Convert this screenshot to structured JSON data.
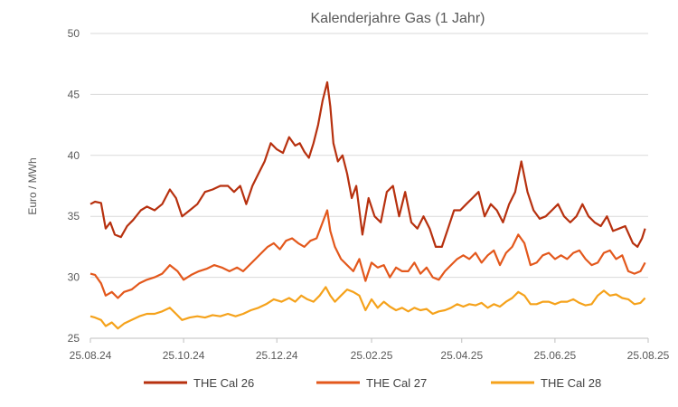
{
  "chart_data": {
    "type": "line",
    "title": "Kalenderjahre Gas (1 Jahr)",
    "xlabel": "",
    "ylabel": "Euro / MWh",
    "ylim": [
      25,
      50
    ],
    "yticks": [
      25,
      30,
      35,
      40,
      45,
      50
    ],
    "xlim": [
      "2024-08-25",
      "2025-08-25"
    ],
    "xticks": [
      "25.08.24",
      "25.10.24",
      "25.12.24",
      "25.02.25",
      "25.04.25",
      "25.06.25",
      "25.08.25"
    ],
    "xtick_dates": [
      "2024-08-25",
      "2024-10-25",
      "2024-12-25",
      "2025-02-25",
      "2025-04-25",
      "2025-06-25",
      "2025-08-25"
    ],
    "grid": "horizontal",
    "legend_position": "bottom",
    "series": [
      {
        "name": "THE Cal 26",
        "color": "#b7310f",
        "points": [
          [
            "2024-08-25",
            36.0
          ],
          [
            "2024-08-28",
            36.2
          ],
          [
            "2024-09-01",
            36.1
          ],
          [
            "2024-09-04",
            34.0
          ],
          [
            "2024-09-07",
            34.5
          ],
          [
            "2024-09-10",
            33.5
          ],
          [
            "2024-09-14",
            33.3
          ],
          [
            "2024-09-18",
            34.2
          ],
          [
            "2024-09-22",
            34.7
          ],
          [
            "2024-09-27",
            35.5
          ],
          [
            "2024-10-01",
            35.8
          ],
          [
            "2024-10-06",
            35.5
          ],
          [
            "2024-10-11",
            36.0
          ],
          [
            "2024-10-16",
            37.2
          ],
          [
            "2024-10-20",
            36.5
          ],
          [
            "2024-10-24",
            35.0
          ],
          [
            "2024-10-29",
            35.5
          ],
          [
            "2024-11-03",
            36.0
          ],
          [
            "2024-11-08",
            37.0
          ],
          [
            "2024-11-13",
            37.2
          ],
          [
            "2024-11-18",
            37.5
          ],
          [
            "2024-11-23",
            37.5
          ],
          [
            "2024-11-27",
            37.0
          ],
          [
            "2024-12-01",
            37.5
          ],
          [
            "2024-12-05",
            36.0
          ],
          [
            "2024-12-09",
            37.5
          ],
          [
            "2024-12-13",
            38.5
          ],
          [
            "2024-12-17",
            39.5
          ],
          [
            "2024-12-21",
            41.0
          ],
          [
            "2024-12-25",
            40.5
          ],
          [
            "2024-12-29",
            40.2
          ],
          [
            "2025-01-02",
            41.5
          ],
          [
            "2025-01-06",
            40.8
          ],
          [
            "2025-01-09",
            41.0
          ],
          [
            "2025-01-12",
            40.3
          ],
          [
            "2025-01-15",
            39.8
          ],
          [
            "2025-01-18",
            41.0
          ],
          [
            "2025-01-21",
            42.5
          ],
          [
            "2025-01-24",
            44.5
          ],
          [
            "2025-01-27",
            46.0
          ],
          [
            "2025-01-29",
            44.0
          ],
          [
            "2025-01-31",
            41.0
          ],
          [
            "2025-02-03",
            39.5
          ],
          [
            "2025-02-06",
            40.0
          ],
          [
            "2025-02-09",
            38.5
          ],
          [
            "2025-02-12",
            36.5
          ],
          [
            "2025-02-15",
            37.5
          ],
          [
            "2025-02-19",
            33.5
          ],
          [
            "2025-02-23",
            36.5
          ],
          [
            "2025-02-27",
            35.0
          ],
          [
            "2025-03-03",
            34.5
          ],
          [
            "2025-03-07",
            37.0
          ],
          [
            "2025-03-11",
            37.5
          ],
          [
            "2025-03-15",
            35.0
          ],
          [
            "2025-03-19",
            37.0
          ],
          [
            "2025-03-23",
            34.5
          ],
          [
            "2025-03-27",
            34.0
          ],
          [
            "2025-03-31",
            35.0
          ],
          [
            "2025-04-04",
            34.0
          ],
          [
            "2025-04-08",
            32.5
          ],
          [
            "2025-04-12",
            32.5
          ],
          [
            "2025-04-16",
            34.0
          ],
          [
            "2025-04-20",
            35.5
          ],
          [
            "2025-04-24",
            35.5
          ],
          [
            "2025-04-28",
            36.0
          ],
          [
            "2025-05-02",
            36.5
          ],
          [
            "2025-05-06",
            37.0
          ],
          [
            "2025-05-10",
            35.0
          ],
          [
            "2025-05-14",
            36.0
          ],
          [
            "2025-05-18",
            35.5
          ],
          [
            "2025-05-22",
            34.5
          ],
          [
            "2025-05-26",
            36.0
          ],
          [
            "2025-05-30",
            37.0
          ],
          [
            "2025-06-03",
            39.5
          ],
          [
            "2025-06-07",
            37.0
          ],
          [
            "2025-06-11",
            35.5
          ],
          [
            "2025-06-15",
            34.8
          ],
          [
            "2025-06-19",
            35.0
          ],
          [
            "2025-06-23",
            35.5
          ],
          [
            "2025-06-27",
            36.0
          ],
          [
            "2025-07-01",
            35.0
          ],
          [
            "2025-07-05",
            34.5
          ],
          [
            "2025-07-09",
            35.0
          ],
          [
            "2025-07-13",
            36.0
          ],
          [
            "2025-07-17",
            35.0
          ],
          [
            "2025-07-21",
            34.5
          ],
          [
            "2025-07-25",
            34.2
          ],
          [
            "2025-07-29",
            35.0
          ],
          [
            "2025-08-02",
            33.8
          ],
          [
            "2025-08-06",
            34.0
          ],
          [
            "2025-08-10",
            34.2
          ],
          [
            "2025-08-15",
            32.8
          ],
          [
            "2025-08-18",
            32.5
          ],
          [
            "2025-08-21",
            33.2
          ],
          [
            "2025-08-23",
            34.0
          ]
        ]
      },
      {
        "name": "THE Cal 27",
        "color": "#e3581c",
        "points": [
          [
            "2024-08-25",
            30.3
          ],
          [
            "2024-08-28",
            30.2
          ],
          [
            "2024-09-01",
            29.5
          ],
          [
            "2024-09-04",
            28.5
          ],
          [
            "2024-09-08",
            28.8
          ],
          [
            "2024-09-12",
            28.3
          ],
          [
            "2024-09-16",
            28.8
          ],
          [
            "2024-09-21",
            29.0
          ],
          [
            "2024-09-26",
            29.5
          ],
          [
            "2024-10-01",
            29.8
          ],
          [
            "2024-10-06",
            30.0
          ],
          [
            "2024-10-11",
            30.3
          ],
          [
            "2024-10-16",
            31.0
          ],
          [
            "2024-10-21",
            30.5
          ],
          [
            "2024-10-25",
            29.8
          ],
          [
            "2024-10-30",
            30.2
          ],
          [
            "2024-11-04",
            30.5
          ],
          [
            "2024-11-09",
            30.7
          ],
          [
            "2024-11-14",
            31.0
          ],
          [
            "2024-11-19",
            30.8
          ],
          [
            "2024-11-24",
            30.5
          ],
          [
            "2024-11-29",
            30.8
          ],
          [
            "2024-12-03",
            30.5
          ],
          [
            "2024-12-07",
            31.0
          ],
          [
            "2024-12-11",
            31.5
          ],
          [
            "2024-12-15",
            32.0
          ],
          [
            "2024-12-19",
            32.5
          ],
          [
            "2024-12-23",
            32.8
          ],
          [
            "2024-12-27",
            32.3
          ],
          [
            "2024-12-31",
            33.0
          ],
          [
            "2025-01-04",
            33.2
          ],
          [
            "2025-01-08",
            32.8
          ],
          [
            "2025-01-12",
            32.5
          ],
          [
            "2025-01-16",
            33.0
          ],
          [
            "2025-01-20",
            33.2
          ],
          [
            "2025-01-24",
            34.5
          ],
          [
            "2025-01-27",
            35.5
          ],
          [
            "2025-01-29",
            33.8
          ],
          [
            "2025-02-01",
            32.5
          ],
          [
            "2025-02-05",
            31.5
          ],
          [
            "2025-02-09",
            31.0
          ],
          [
            "2025-02-13",
            30.5
          ],
          [
            "2025-02-17",
            31.5
          ],
          [
            "2025-02-21",
            29.7
          ],
          [
            "2025-02-25",
            31.2
          ],
          [
            "2025-03-01",
            30.8
          ],
          [
            "2025-03-05",
            31.0
          ],
          [
            "2025-03-09",
            30.0
          ],
          [
            "2025-03-13",
            30.8
          ],
          [
            "2025-03-17",
            30.5
          ],
          [
            "2025-03-21",
            30.5
          ],
          [
            "2025-03-25",
            31.2
          ],
          [
            "2025-03-29",
            30.3
          ],
          [
            "2025-04-02",
            30.8
          ],
          [
            "2025-04-06",
            30.0
          ],
          [
            "2025-04-10",
            29.8
          ],
          [
            "2025-04-14",
            30.5
          ],
          [
            "2025-04-18",
            31.0
          ],
          [
            "2025-04-22",
            31.5
          ],
          [
            "2025-04-26",
            31.8
          ],
          [
            "2025-04-30",
            31.5
          ],
          [
            "2025-05-04",
            32.0
          ],
          [
            "2025-05-08",
            31.2
          ],
          [
            "2025-05-12",
            31.8
          ],
          [
            "2025-05-16",
            32.2
          ],
          [
            "2025-05-20",
            31.0
          ],
          [
            "2025-05-24",
            32.0
          ],
          [
            "2025-05-28",
            32.5
          ],
          [
            "2025-06-01",
            33.5
          ],
          [
            "2025-06-05",
            32.8
          ],
          [
            "2025-06-09",
            31.0
          ],
          [
            "2025-06-13",
            31.2
          ],
          [
            "2025-06-17",
            31.8
          ],
          [
            "2025-06-21",
            32.0
          ],
          [
            "2025-06-25",
            31.5
          ],
          [
            "2025-06-29",
            31.8
          ],
          [
            "2025-07-03",
            31.5
          ],
          [
            "2025-07-07",
            32.0
          ],
          [
            "2025-07-11",
            32.2
          ],
          [
            "2025-07-15",
            31.5
          ],
          [
            "2025-07-19",
            31.0
          ],
          [
            "2025-07-23",
            31.2
          ],
          [
            "2025-07-27",
            32.0
          ],
          [
            "2025-07-31",
            32.2
          ],
          [
            "2025-08-04",
            31.5
          ],
          [
            "2025-08-08",
            31.8
          ],
          [
            "2025-08-12",
            30.5
          ],
          [
            "2025-08-16",
            30.3
          ],
          [
            "2025-08-20",
            30.5
          ],
          [
            "2025-08-23",
            31.2
          ]
        ]
      },
      {
        "name": "THE Cal 28",
        "color": "#f5a21b",
        "points": [
          [
            "2024-08-25",
            26.8
          ],
          [
            "2024-08-28",
            26.7
          ],
          [
            "2024-09-01",
            26.5
          ],
          [
            "2024-09-04",
            26.0
          ],
          [
            "2024-09-08",
            26.3
          ],
          [
            "2024-09-12",
            25.8
          ],
          [
            "2024-09-16",
            26.2
          ],
          [
            "2024-09-21",
            26.5
          ],
          [
            "2024-09-26",
            26.8
          ],
          [
            "2024-10-01",
            27.0
          ],
          [
            "2024-10-06",
            27.0
          ],
          [
            "2024-10-11",
            27.2
          ],
          [
            "2024-10-16",
            27.5
          ],
          [
            "2024-10-20",
            27.0
          ],
          [
            "2024-10-24",
            26.5
          ],
          [
            "2024-10-29",
            26.7
          ],
          [
            "2024-11-03",
            26.8
          ],
          [
            "2024-11-08",
            26.7
          ],
          [
            "2024-11-13",
            26.9
          ],
          [
            "2024-11-18",
            26.8
          ],
          [
            "2024-11-23",
            27.0
          ],
          [
            "2024-11-28",
            26.8
          ],
          [
            "2024-12-03",
            27.0
          ],
          [
            "2024-12-08",
            27.3
          ],
          [
            "2024-12-13",
            27.5
          ],
          [
            "2024-12-18",
            27.8
          ],
          [
            "2024-12-23",
            28.2
          ],
          [
            "2024-12-28",
            28.0
          ],
          [
            "2025-01-02",
            28.3
          ],
          [
            "2025-01-06",
            28.0
          ],
          [
            "2025-01-10",
            28.5
          ],
          [
            "2025-01-14",
            28.2
          ],
          [
            "2025-01-18",
            28.0
          ],
          [
            "2025-01-22",
            28.5
          ],
          [
            "2025-01-26",
            29.2
          ],
          [
            "2025-01-29",
            28.5
          ],
          [
            "2025-02-01",
            28.0
          ],
          [
            "2025-02-05",
            28.5
          ],
          [
            "2025-02-09",
            29.0
          ],
          [
            "2025-02-13",
            28.8
          ],
          [
            "2025-02-17",
            28.5
          ],
          [
            "2025-02-21",
            27.3
          ],
          [
            "2025-02-25",
            28.2
          ],
          [
            "2025-03-01",
            27.5
          ],
          [
            "2025-03-05",
            28.0
          ],
          [
            "2025-03-09",
            27.6
          ],
          [
            "2025-03-13",
            27.3
          ],
          [
            "2025-03-17",
            27.5
          ],
          [
            "2025-03-21",
            27.2
          ],
          [
            "2025-03-25",
            27.5
          ],
          [
            "2025-03-29",
            27.3
          ],
          [
            "2025-04-02",
            27.4
          ],
          [
            "2025-04-06",
            27.0
          ],
          [
            "2025-04-10",
            27.2
          ],
          [
            "2025-04-14",
            27.3
          ],
          [
            "2025-04-18",
            27.5
          ],
          [
            "2025-04-22",
            27.8
          ],
          [
            "2025-04-26",
            27.6
          ],
          [
            "2025-04-30",
            27.8
          ],
          [
            "2025-05-04",
            27.7
          ],
          [
            "2025-05-08",
            27.9
          ],
          [
            "2025-05-12",
            27.5
          ],
          [
            "2025-05-16",
            27.8
          ],
          [
            "2025-05-20",
            27.6
          ],
          [
            "2025-05-24",
            28.0
          ],
          [
            "2025-05-28",
            28.3
          ],
          [
            "2025-06-01",
            28.8
          ],
          [
            "2025-06-05",
            28.5
          ],
          [
            "2025-06-09",
            27.8
          ],
          [
            "2025-06-13",
            27.8
          ],
          [
            "2025-06-17",
            28.0
          ],
          [
            "2025-06-21",
            28.0
          ],
          [
            "2025-06-25",
            27.8
          ],
          [
            "2025-06-29",
            28.0
          ],
          [
            "2025-07-03",
            28.0
          ],
          [
            "2025-07-07",
            28.2
          ],
          [
            "2025-07-11",
            27.9
          ],
          [
            "2025-07-15",
            27.7
          ],
          [
            "2025-07-19",
            27.8
          ],
          [
            "2025-07-23",
            28.5
          ],
          [
            "2025-07-27",
            28.9
          ],
          [
            "2025-07-31",
            28.5
          ],
          [
            "2025-08-04",
            28.6
          ],
          [
            "2025-08-08",
            28.3
          ],
          [
            "2025-08-12",
            28.2
          ],
          [
            "2025-08-16",
            27.8
          ],
          [
            "2025-08-20",
            27.9
          ],
          [
            "2025-08-23",
            28.3
          ]
        ]
      }
    ]
  }
}
